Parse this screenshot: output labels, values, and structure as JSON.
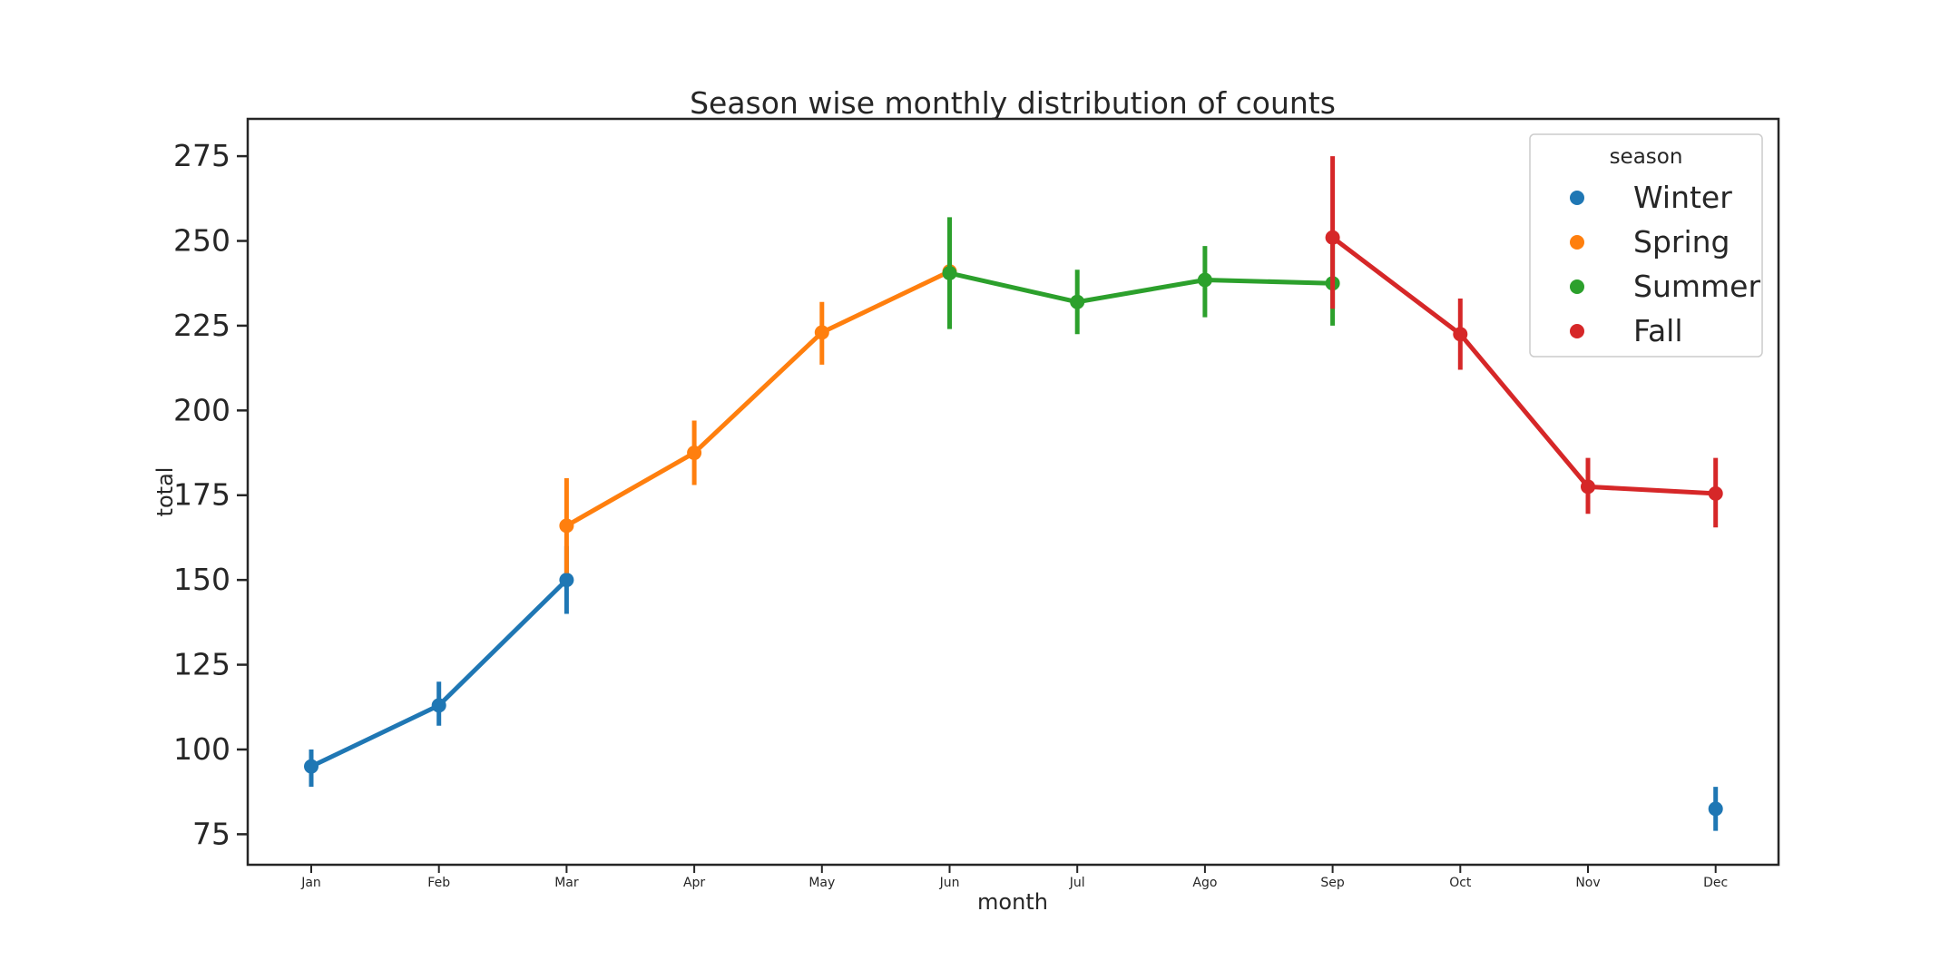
{
  "chart_data": {
    "type": "line",
    "title": "Season wise monthly distribution of counts",
    "xlabel": "month",
    "ylabel": "total",
    "categories": [
      "Jan",
      "Feb",
      "Mar",
      "Apr",
      "May",
      "Jun",
      "Jul",
      "Ago",
      "Sep",
      "Oct",
      "Nov",
      "Dec"
    ],
    "ylim": [
      66,
      286
    ],
    "yticks": [
      75,
      100,
      125,
      150,
      175,
      200,
      225,
      250,
      275
    ],
    "grid": false,
    "legend": {
      "title": "season",
      "placement": "top-right"
    },
    "series": [
      {
        "name": "Winter",
        "color": "#1f77b4",
        "points": [
          {
            "x": "Jan",
            "y": 95,
            "low": 89,
            "high": 100
          },
          {
            "x": "Feb",
            "y": 113,
            "low": 107,
            "high": 120
          },
          {
            "x": "Mar",
            "y": 150,
            "low": 140,
            "high": 160
          },
          {
            "x": "Dec",
            "y": 82.5,
            "low": 76,
            "high": 89
          }
        ],
        "segments": [
          [
            "Jan",
            "Feb",
            "Mar"
          ],
          [
            "Dec"
          ]
        ]
      },
      {
        "name": "Spring",
        "color": "#ff7f0e",
        "points": [
          {
            "x": "Mar",
            "y": 166,
            "low": 152,
            "high": 180
          },
          {
            "x": "Apr",
            "y": 187.5,
            "low": 178,
            "high": 197
          },
          {
            "x": "May",
            "y": 223,
            "low": 213.5,
            "high": 232
          },
          {
            "x": "Jun",
            "y": 241,
            "low": 230,
            "high": 251
          }
        ],
        "segments": [
          [
            "Mar",
            "Apr",
            "May",
            "Jun"
          ]
        ]
      },
      {
        "name": "Summer",
        "color": "#2ca02c",
        "points": [
          {
            "x": "Jun",
            "y": 240.5,
            "low": 224,
            "high": 257
          },
          {
            "x": "Jul",
            "y": 232,
            "low": 222.5,
            "high": 241.5
          },
          {
            "x": "Ago",
            "y": 238.5,
            "low": 227.5,
            "high": 248.5
          },
          {
            "x": "Sep",
            "y": 237.5,
            "low": 225,
            "high": 249
          }
        ],
        "segments": [
          [
            "Jun",
            "Jul",
            "Ago",
            "Sep"
          ]
        ]
      },
      {
        "name": "Fall",
        "color": "#d62728",
        "points": [
          {
            "x": "Sep",
            "y": 251,
            "low": 230,
            "high": 275
          },
          {
            "x": "Oct",
            "y": 222.5,
            "low": 212,
            "high": 233
          },
          {
            "x": "Nov",
            "y": 177.5,
            "low": 169.5,
            "high": 186
          },
          {
            "x": "Dec",
            "y": 175.5,
            "low": 165.5,
            "high": 186
          }
        ],
        "segments": [
          [
            "Sep",
            "Oct",
            "Nov",
            "Dec"
          ]
        ]
      }
    ]
  }
}
